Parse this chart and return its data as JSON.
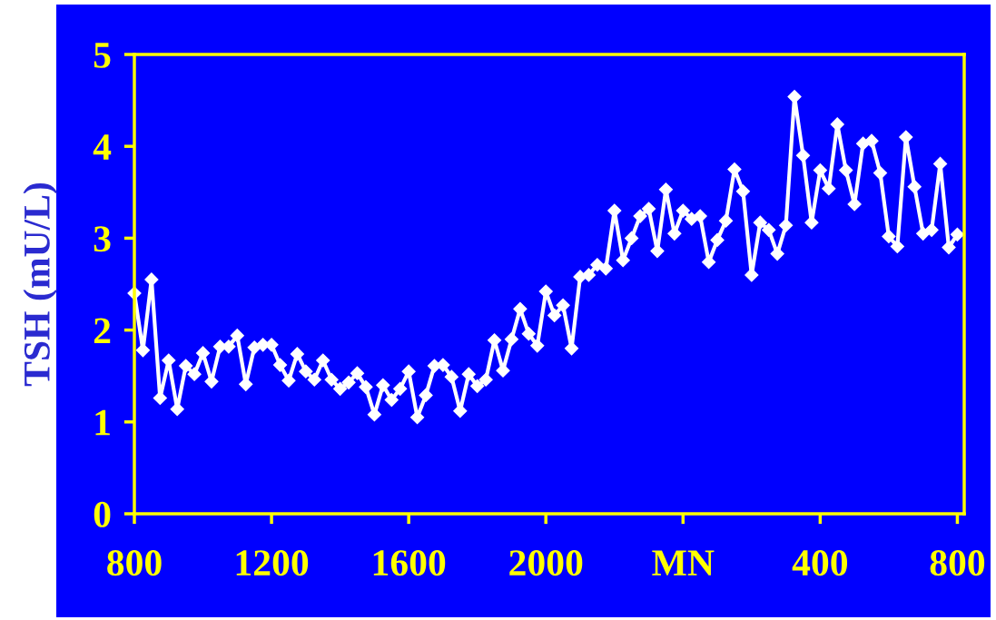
{
  "chart_data": {
    "type": "line",
    "ylabel": "TSH (mU/L)",
    "categories": [
      "800",
      null,
      null,
      null,
      null,
      null,
      null,
      null,
      null,
      null,
      null,
      null,
      null,
      null,
      null,
      null,
      "1200",
      null,
      null,
      null,
      null,
      null,
      null,
      null,
      null,
      null,
      null,
      null,
      null,
      null,
      null,
      null,
      "1600",
      null,
      null,
      null,
      null,
      null,
      null,
      null,
      null,
      null,
      null,
      null,
      null,
      null,
      null,
      null,
      "2000",
      null,
      null,
      null,
      null,
      null,
      null,
      null,
      null,
      null,
      null,
      null,
      null,
      null,
      null,
      null,
      "MN",
      null,
      null,
      null,
      null,
      null,
      null,
      null,
      null,
      null,
      null,
      null,
      null,
      null,
      null,
      null,
      "400",
      null,
      null,
      null,
      null,
      null,
      null,
      null,
      null,
      null,
      null,
      null,
      null,
      null,
      null,
      null,
      "800"
    ],
    "ylim": [
      0,
      5
    ],
    "yticks": [
      0,
      1,
      2,
      3,
      4,
      5
    ],
    "grid": false,
    "marker": "diamond",
    "line_style": "solid",
    "series": [
      {
        "color": "#ffffff",
        "values": [
          2.4,
          1.78,
          2.55,
          1.26,
          1.67,
          1.14,
          1.61,
          1.52,
          1.75,
          1.44,
          1.82,
          1.82,
          1.94,
          1.41,
          1.81,
          1.84,
          1.84,
          1.62,
          1.45,
          1.74,
          1.55,
          1.46,
          1.67,
          1.46,
          1.36,
          1.43,
          1.53,
          1.38,
          1.08,
          1.4,
          1.24,
          1.36,
          1.55,
          1.05,
          1.29,
          1.61,
          1.62,
          1.49,
          1.12,
          1.52,
          1.39,
          1.46,
          1.89,
          1.56,
          1.9,
          2.23,
          1.96,
          1.83,
          2.42,
          2.16,
          2.27,
          1.8,
          2.58,
          2.6,
          2.71,
          2.67,
          3.3,
          2.76,
          3.0,
          3.24,
          3.32,
          2.86,
          3.53,
          3.05,
          3.3,
          3.21,
          3.24,
          2.74,
          2.98,
          3.19,
          3.75,
          3.51,
          2.6,
          3.17,
          3.09,
          2.83,
          3.14,
          4.54,
          3.9,
          3.17,
          3.74,
          3.54,
          4.24,
          3.74,
          3.37,
          4.03,
          4.06,
          3.71,
          3.02,
          2.91,
          4.1,
          3.56,
          3.05,
          3.09,
          3.81,
          2.9,
          3.04
        ]
      }
    ]
  }
}
